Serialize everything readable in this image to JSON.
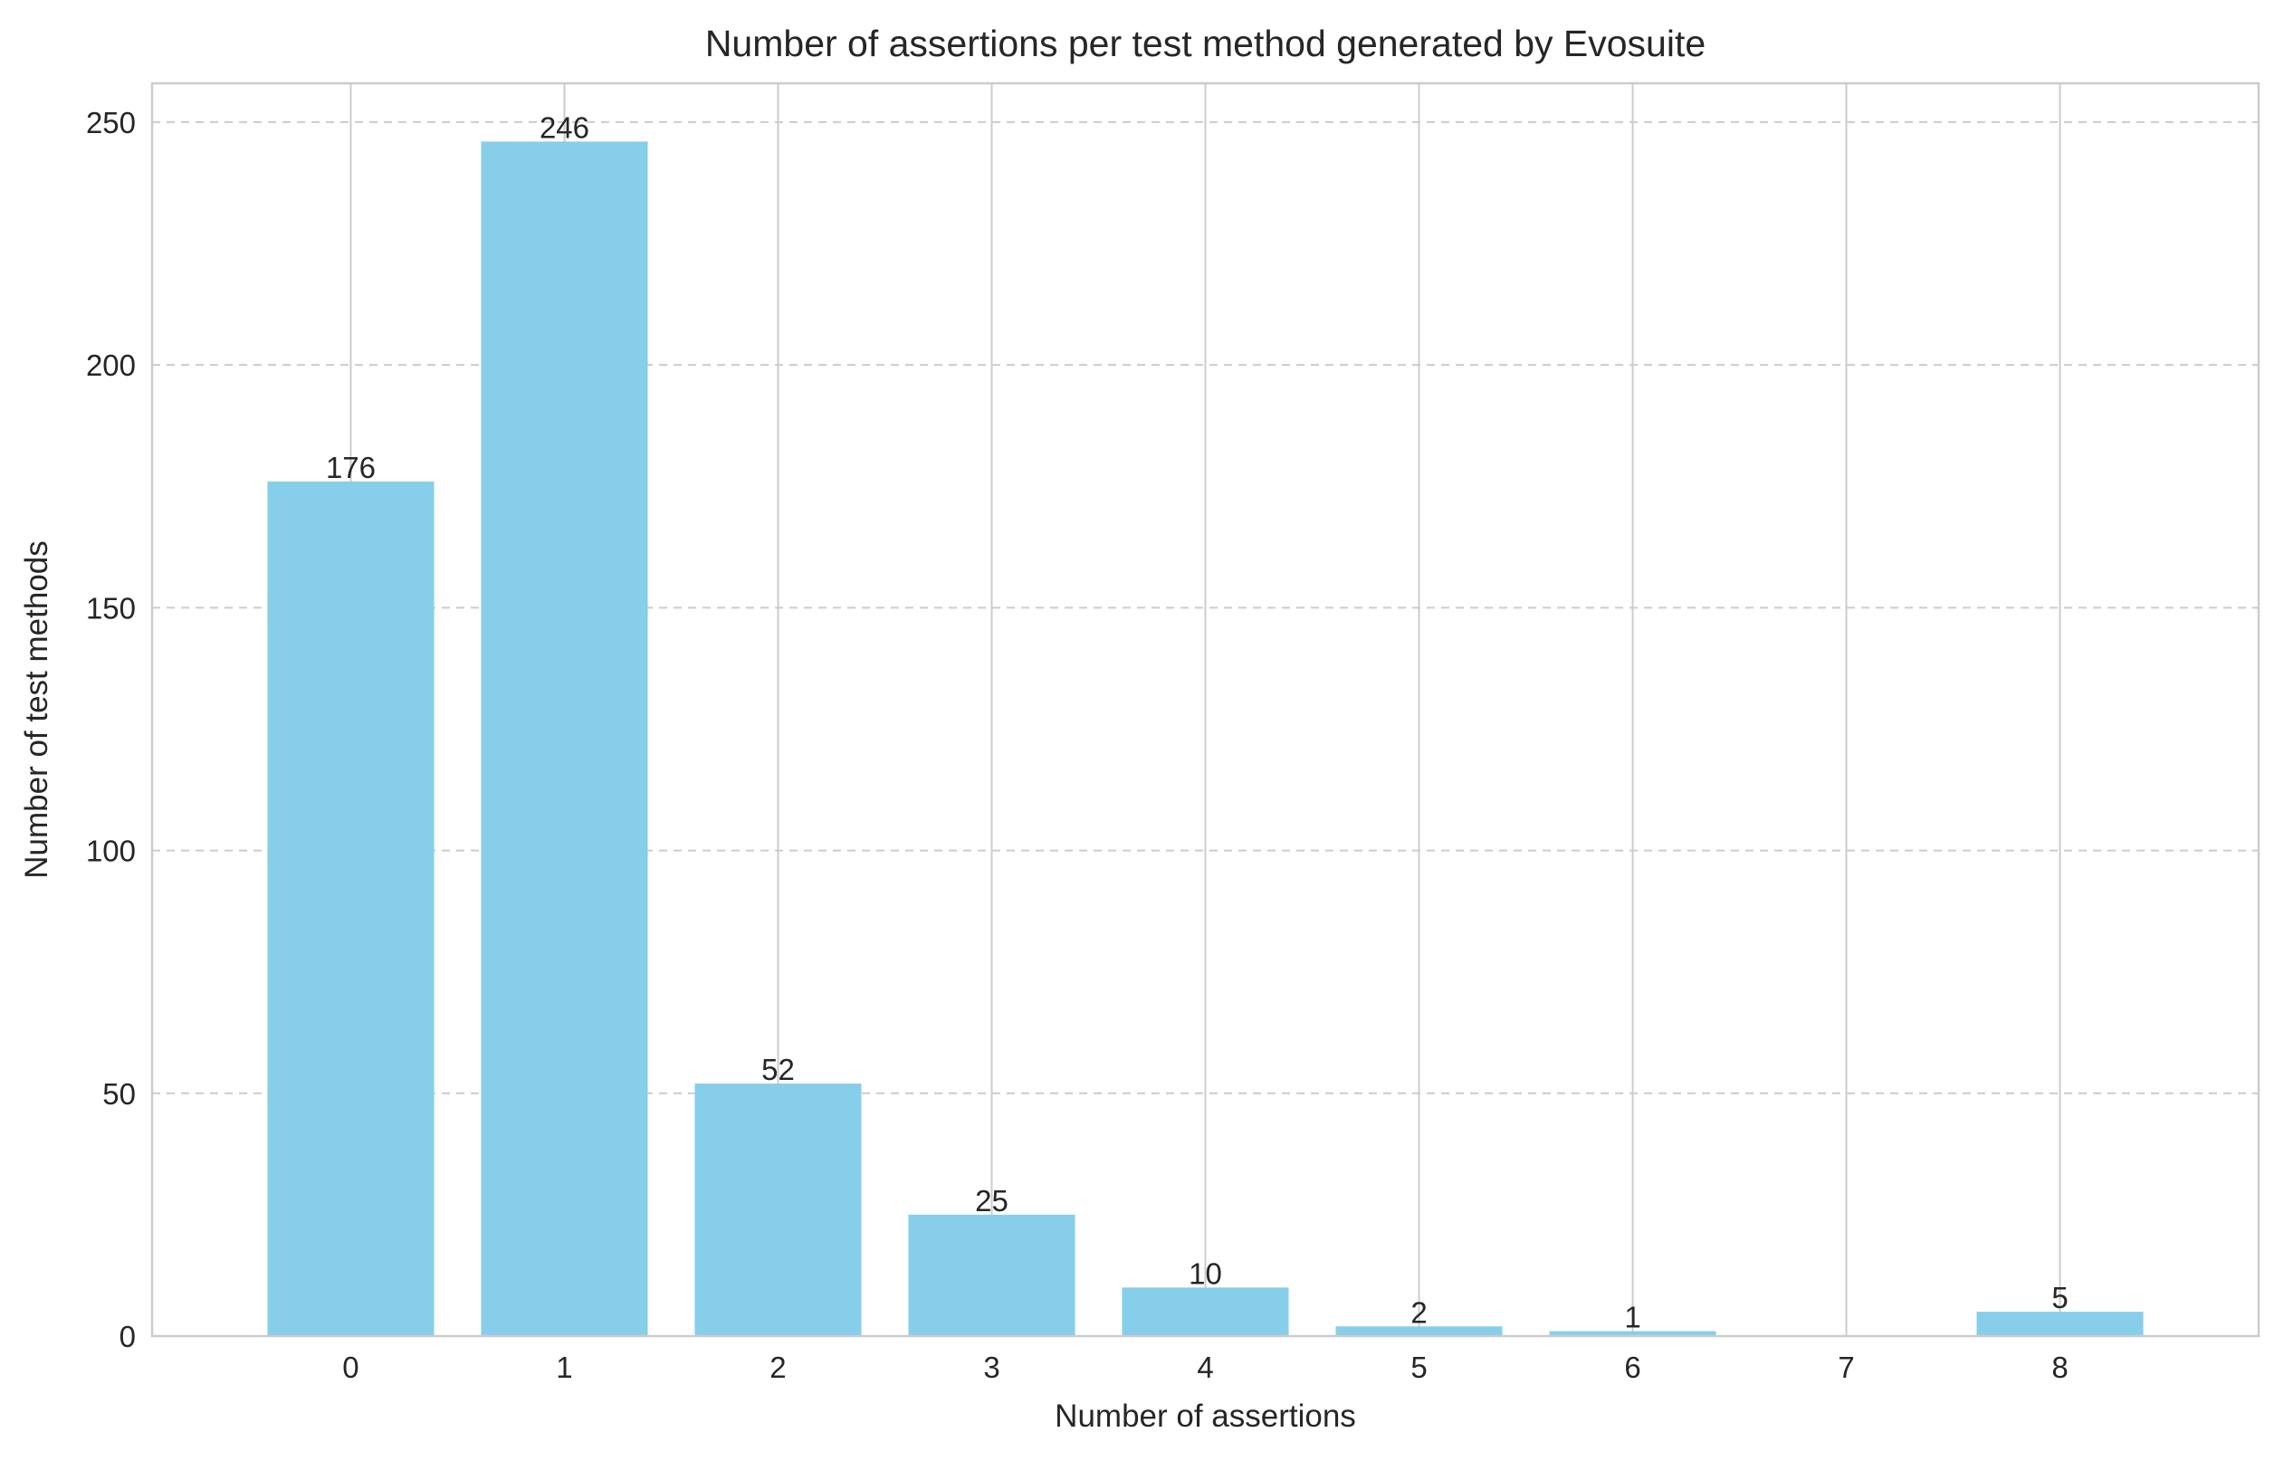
{
  "chart_data": {
    "type": "bar",
    "title": "Number of assertions per test method generated by Evosuite",
    "xlabel": "Number of assertions",
    "ylabel": "Number of test methods",
    "categories": [
      "0",
      "1",
      "2",
      "3",
      "4",
      "5",
      "6",
      "7",
      "8"
    ],
    "values": [
      176,
      246,
      52,
      25,
      10,
      2,
      1,
      0,
      5
    ],
    "data_labels": [
      "176",
      "246",
      "52",
      "25",
      "10",
      "2",
      "1",
      "",
      "5"
    ],
    "yticks": [
      0,
      50,
      100,
      150,
      200,
      250
    ],
    "ylim": [
      0,
      258
    ],
    "grid": {
      "x": true,
      "y": true,
      "y_style": "dashed"
    },
    "colors": {
      "bar": "#87ceeb",
      "grid": "#cccccc",
      "spine": "#cccccc",
      "text": "#262626"
    }
  }
}
